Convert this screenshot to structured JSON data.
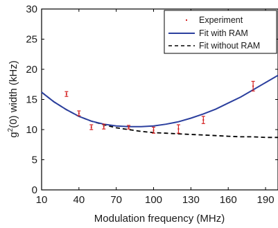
{
  "chart_data": {
    "type": "scatter",
    "xlabel": "Modulation frequency (MHz)",
    "ylabel_prefix": "g",
    "ylabel_sup": "2",
    "ylabel_suffix": "(0) width (kHz)",
    "xlim": [
      10,
      200
    ],
    "ylim": [
      0,
      30
    ],
    "xticks": [
      10,
      40,
      70,
      100,
      130,
      160,
      190
    ],
    "yticks": [
      0,
      5,
      10,
      15,
      20,
      25,
      30
    ],
    "grid": false,
    "legend_position": "top-right",
    "series": [
      {
        "name": "Experiment",
        "kind": "errorbar",
        "color": "#d42020",
        "points": [
          {
            "x": 30,
            "y": 15.9,
            "err": 0.4
          },
          {
            "x": 40,
            "y": 12.7,
            "err": 0.4
          },
          {
            "x": 50,
            "y": 10.4,
            "err": 0.4
          },
          {
            "x": 60,
            "y": 10.5,
            "err": 0.4
          },
          {
            "x": 80,
            "y": 10.4,
            "err": 0.3
          },
          {
            "x": 100,
            "y": 9.9,
            "err": 0.5
          },
          {
            "x": 120,
            "y": 10.1,
            "err": 0.7
          },
          {
            "x": 140,
            "y": 11.6,
            "err": 0.6
          },
          {
            "x": 180,
            "y": 17.2,
            "err": 0.8
          }
        ]
      },
      {
        "name": "Fit with RAM",
        "kind": "line",
        "color": "#2b3f9e",
        "x": [
          10,
          20,
          30,
          40,
          50,
          60,
          70,
          80,
          90,
          100,
          110,
          120,
          130,
          140,
          150,
          160,
          170,
          180,
          190,
          200
        ],
        "y": [
          16.2,
          14.6,
          13.3,
          12.2,
          11.4,
          10.9,
          10.6,
          10.5,
          10.5,
          10.6,
          10.9,
          11.3,
          11.9,
          12.6,
          13.4,
          14.4,
          15.4,
          16.6,
          17.8,
          19.0
        ]
      },
      {
        "name": "Fit without RAM",
        "kind": "dashed",
        "color": "#000000",
        "x": [
          10,
          20,
          30,
          40,
          50,
          60,
          70,
          80,
          90,
          100,
          110,
          120,
          130,
          140,
          150,
          160,
          170,
          180,
          190,
          200
        ],
        "y": [
          16.2,
          14.6,
          13.3,
          12.2,
          11.4,
          10.8,
          10.3,
          10.0,
          9.7,
          9.5,
          9.4,
          9.3,
          9.2,
          9.1,
          9.0,
          8.9,
          8.8,
          8.8,
          8.7,
          8.7
        ]
      }
    ]
  }
}
